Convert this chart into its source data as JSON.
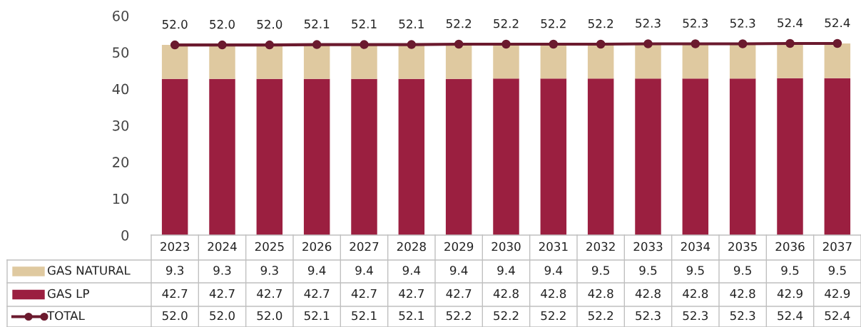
{
  "chart_data": {
    "type": "bar",
    "stacked": true,
    "categories": [
      "2023",
      "2024",
      "2025",
      "2026",
      "2027",
      "2028",
      "2029",
      "2030",
      "2031",
      "2032",
      "2033",
      "2034",
      "2035",
      "2036",
      "2037"
    ],
    "series": [
      {
        "name": "GAS LP",
        "color": "#9b1f40",
        "values": [
          42.7,
          42.7,
          42.7,
          42.7,
          42.7,
          42.7,
          42.7,
          42.8,
          42.8,
          42.8,
          42.8,
          42.8,
          42.8,
          42.9,
          42.9
        ]
      },
      {
        "name": "GAS NATURAL",
        "color": "#dfc9a0",
        "values": [
          9.3,
          9.3,
          9.3,
          9.4,
          9.4,
          9.4,
          9.4,
          9.4,
          9.4,
          9.5,
          9.5,
          9.5,
          9.5,
          9.5,
          9.5
        ]
      },
      {
        "name": "TOTAL",
        "type": "line",
        "color": "#6b1a2e",
        "marker": "circle",
        "values": [
          52.0,
          52.0,
          52.0,
          52.1,
          52.1,
          52.1,
          52.2,
          52.2,
          52.2,
          52.2,
          52.3,
          52.3,
          52.3,
          52.4,
          52.4
        ],
        "value_labels": [
          "52.0",
          "52.0",
          "52.0",
          "52.1",
          "52.1",
          "52.1",
          "52.2",
          "52.2",
          "52.2",
          "52.2",
          "52.3",
          "52.3",
          "52.3",
          "52.4",
          "52.4"
        ]
      }
    ],
    "ylim": [
      0,
      60
    ],
    "yticks": [
      0,
      10,
      20,
      30,
      40,
      50,
      60
    ],
    "grid": false,
    "legend": "bottom",
    "data_labels": true
  }
}
